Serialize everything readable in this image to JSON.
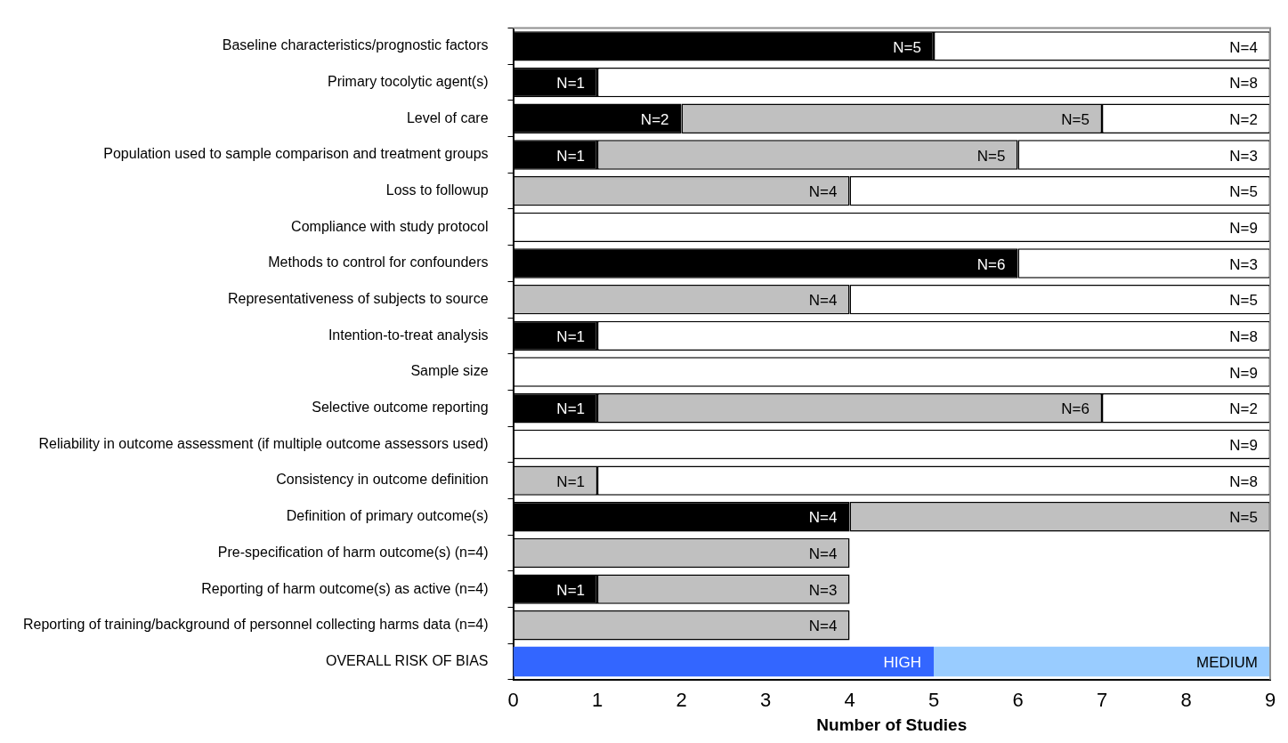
{
  "chart_data": {
    "type": "bar",
    "orientation": "horizontal",
    "stacked": true,
    "xlabel": "Number of Studies",
    "categories": [
      "Baseline characteristics/prognostic factors",
      "Primary tocolytic agent(s)",
      "Level of care",
      "Population used to sample comparison and treatment groups",
      "Loss to followup",
      "Compliance with study protocol",
      "Methods to control for confounders",
      "Representativeness of subjects to source",
      "Intention-to-treat analysis",
      "Sample size",
      "Selective outcome reporting",
      "Reliability in outcome assessment (if multiple outcome assessors used)",
      "Consistency in outcome definition",
      "Definition of primary outcome(s)",
      "Pre-specification of harm outcome(s) (n=4)",
      "Reporting of harm outcome(s) as active (n=4)",
      "Reporting of training/background of personnel collecting harms data (n=4)",
      "OVERALL RISK OF BIAS"
    ],
    "series": [
      {
        "color": "#000000",
        "values": [
          5,
          1,
          2,
          1,
          null,
          null,
          6,
          null,
          1,
          null,
          1,
          null,
          null,
          4,
          null,
          1,
          null,
          null
        ],
        "value_labels": [
          "N=5",
          "N=1",
          "N=2",
          "N=1",
          null,
          null,
          "N=6",
          null,
          "N=1",
          null,
          "N=1",
          null,
          null,
          "N=4",
          null,
          "N=1",
          null,
          null
        ]
      },
      {
        "color": "#c0c0c0",
        "values": [
          null,
          null,
          5,
          5,
          4,
          null,
          null,
          4,
          null,
          null,
          6,
          null,
          1,
          5,
          4,
          3,
          4,
          null
        ],
        "value_labels": [
          null,
          null,
          "N=5",
          "N=5",
          "N=4",
          null,
          null,
          "N=4",
          null,
          null,
          "N=6",
          null,
          "N=1",
          "N=5",
          "N=4",
          "N=3",
          "N=4",
          null
        ]
      },
      {
        "color": "#ffffff",
        "values": [
          4,
          8,
          2,
          3,
          5,
          9,
          3,
          5,
          8,
          9,
          2,
          9,
          8,
          null,
          null,
          null,
          null,
          null
        ],
        "value_labels": [
          "N=4",
          "N=8",
          "N=2",
          "N=3",
          "N=5",
          "N=9",
          "N=3",
          "N=5",
          "N=8",
          "N=9",
          "N=2",
          "N=9",
          "N=8",
          null,
          null,
          null,
          null,
          null
        ]
      },
      {
        "color": "#3366ff",
        "values": [
          null,
          null,
          null,
          null,
          null,
          null,
          null,
          null,
          null,
          null,
          null,
          null,
          null,
          null,
          null,
          null,
          null,
          5
        ],
        "value_labels": [
          null,
          null,
          null,
          null,
          null,
          null,
          null,
          null,
          null,
          null,
          null,
          null,
          null,
          null,
          null,
          null,
          null,
          "HIGH"
        ]
      },
      {
        "color": "#99ccff",
        "values": [
          null,
          null,
          null,
          null,
          null,
          null,
          null,
          null,
          null,
          null,
          null,
          null,
          null,
          null,
          null,
          null,
          null,
          4
        ],
        "value_labels": [
          null,
          null,
          null,
          null,
          null,
          null,
          null,
          null,
          null,
          null,
          null,
          null,
          null,
          null,
          null,
          null,
          null,
          "MEDIUM"
        ]
      }
    ],
    "xlim": [
      0,
      9
    ],
    "xticks": [
      0,
      1,
      2,
      3,
      4,
      5,
      6,
      7,
      8,
      9
    ],
    "grid": false,
    "legend": false
  }
}
